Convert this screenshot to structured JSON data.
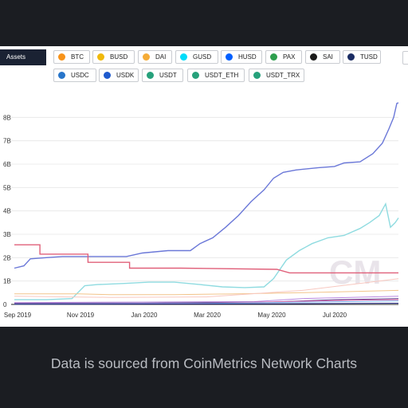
{
  "colors": {
    "background": "#1b1d22",
    "panel": "#ffffff",
    "caption": "#b9bcc2",
    "assets_label_bg": "#1a2233"
  },
  "assets_label": "Assets",
  "assets": [
    {
      "label": "BTC",
      "icon": "btc-icon",
      "color": "#f7931a"
    },
    {
      "label": "BUSD",
      "icon": "busd-icon",
      "color": "#f0b90b"
    },
    {
      "label": "DAI",
      "icon": "dai-icon",
      "color": "#f5ac37"
    },
    {
      "label": "GUSD",
      "icon": "gusd-icon",
      "color": "#00dcfa"
    },
    {
      "label": "HUSD",
      "icon": "husd-icon",
      "color": "#005fff"
    },
    {
      "label": "PAX",
      "icon": "pax-icon",
      "color": "#2e9f4e"
    },
    {
      "label": "SAI",
      "icon": "sai-icon",
      "color": "#1a1a1a"
    },
    {
      "label": "TUSD",
      "icon": "tusd-icon",
      "color": "#1a2c63"
    },
    {
      "label": "USDC",
      "icon": "usdc-icon",
      "color": "#2775ca"
    },
    {
      "label": "USDK",
      "icon": "usdk-icon",
      "color": "#1f5acd"
    },
    {
      "label": "USDT",
      "icon": "usdt-icon",
      "color": "#26a17b"
    },
    {
      "label": "USDT_ETH",
      "icon": "usdt-icon",
      "color": "#26a17b"
    },
    {
      "label": "USDT_TRX",
      "icon": "usdt-icon",
      "color": "#26a17b"
    }
  ],
  "caption": "Data is sourced from CoinMetrics Network Charts",
  "chart_data": {
    "type": "line",
    "title": "",
    "xlabel": "",
    "ylabel": "",
    "x_ticks": [
      "Sep 2019",
      "Nov 2019",
      "Jan 2020",
      "Mar 2020",
      "May 2020",
      "Jul 2020"
    ],
    "y_ticks": [
      "0",
      "1B",
      "2B",
      "3B",
      "4B",
      "5B",
      "6B",
      "7B",
      "8B"
    ],
    "ylim": [
      0,
      9
    ],
    "xlim": [
      0,
      12
    ],
    "grid": true,
    "legend": "none",
    "watermark": "CM",
    "series": [
      {
        "color": "#6b78d8",
        "values": [
          [
            0,
            1.55
          ],
          [
            0.3,
            1.65
          ],
          [
            0.5,
            1.95
          ],
          [
            1.0,
            2.0
          ],
          [
            1.5,
            2.05
          ],
          [
            2.0,
            2.05
          ],
          [
            3.5,
            2.05
          ],
          [
            4.0,
            2.2
          ],
          [
            4.8,
            2.3
          ],
          [
            5.5,
            2.3
          ],
          [
            5.8,
            2.6
          ],
          [
            6.2,
            2.85
          ],
          [
            6.6,
            3.3
          ],
          [
            7.0,
            3.8
          ],
          [
            7.4,
            4.4
          ],
          [
            7.8,
            4.9
          ],
          [
            8.1,
            5.4
          ],
          [
            8.4,
            5.65
          ],
          [
            8.8,
            5.75
          ],
          [
            9.5,
            5.85
          ],
          [
            10.0,
            5.9
          ],
          [
            10.3,
            6.05
          ],
          [
            10.8,
            6.1
          ],
          [
            11.2,
            6.45
          ],
          [
            11.5,
            6.9
          ],
          [
            11.7,
            7.5
          ],
          [
            11.85,
            8.0
          ],
          [
            11.95,
            8.6
          ],
          [
            12.0,
            8.62
          ]
        ]
      },
      {
        "color": "#8fdbe0",
        "values": [
          [
            0,
            0.2
          ],
          [
            1.0,
            0.2
          ],
          [
            1.8,
            0.25
          ],
          [
            2.2,
            0.8
          ],
          [
            2.6,
            0.85
          ],
          [
            3.5,
            0.9
          ],
          [
            4.2,
            0.95
          ],
          [
            5.0,
            0.95
          ],
          [
            5.8,
            0.85
          ],
          [
            6.5,
            0.75
          ],
          [
            7.2,
            0.72
          ],
          [
            7.8,
            0.75
          ],
          [
            8.1,
            1.1
          ],
          [
            8.5,
            1.9
          ],
          [
            8.9,
            2.3
          ],
          [
            9.3,
            2.6
          ],
          [
            9.8,
            2.85
          ],
          [
            10.3,
            2.95
          ],
          [
            10.8,
            3.25
          ],
          [
            11.1,
            3.5
          ],
          [
            11.4,
            3.8
          ],
          [
            11.6,
            4.3
          ],
          [
            11.75,
            3.3
          ],
          [
            11.9,
            3.5
          ],
          [
            12.0,
            3.7
          ]
        ]
      },
      {
        "color": "#e0607a",
        "values": [
          [
            0,
            2.55
          ],
          [
            0.8,
            2.55
          ],
          [
            0.8,
            2.15
          ],
          [
            2.3,
            2.15
          ],
          [
            2.3,
            1.8
          ],
          [
            3.6,
            1.8
          ],
          [
            3.6,
            1.55
          ],
          [
            5.2,
            1.55
          ],
          [
            8.2,
            1.5
          ],
          [
            8.6,
            1.35
          ],
          [
            12.0,
            1.35
          ]
        ]
      },
      {
        "color": "#f2c48a",
        "values": [
          [
            0,
            0.45
          ],
          [
            2.0,
            0.45
          ],
          [
            3.0,
            0.42
          ],
          [
            5.0,
            0.42
          ],
          [
            7.0,
            0.45
          ],
          [
            9.0,
            0.5
          ],
          [
            10.5,
            0.55
          ],
          [
            12.0,
            0.6
          ]
        ]
      },
      {
        "color": "#f8c8c0",
        "values": [
          [
            0,
            0.35
          ],
          [
            3.0,
            0.3
          ],
          [
            6.0,
            0.32
          ],
          [
            9.0,
            0.6
          ],
          [
            10.5,
            0.85
          ],
          [
            12.0,
            1.1
          ]
        ]
      },
      {
        "color": "#b888e0",
        "values": [
          [
            0,
            0.08
          ],
          [
            4.0,
            0.1
          ],
          [
            7.5,
            0.12
          ],
          [
            9.0,
            0.25
          ],
          [
            10.5,
            0.3
          ],
          [
            12.0,
            0.35
          ]
        ]
      },
      {
        "color": "#5a3b8c",
        "values": [
          [
            0,
            0.05
          ],
          [
            4.0,
            0.06
          ],
          [
            8.0,
            0.1
          ],
          [
            10.0,
            0.2
          ],
          [
            12.0,
            0.25
          ]
        ]
      },
      {
        "color": "#e26aa8",
        "values": [
          [
            0,
            0.03
          ],
          [
            6.0,
            0.05
          ],
          [
            8.5,
            0.12
          ],
          [
            10.5,
            0.18
          ],
          [
            12.0,
            0.2
          ]
        ]
      },
      {
        "color": "#7ab8f0",
        "values": [
          [
            0,
            0.02
          ],
          [
            6.0,
            0.04
          ],
          [
            9.0,
            0.1
          ],
          [
            12.0,
            0.15
          ]
        ]
      },
      {
        "color": "#2a2e8a",
        "values": [
          [
            0,
            0.01
          ],
          [
            6.0,
            0.02
          ],
          [
            12.0,
            0.05
          ]
        ]
      }
    ]
  }
}
